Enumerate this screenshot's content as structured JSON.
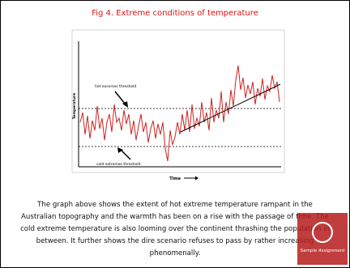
{
  "figure": {
    "title": "Fig 4. Extreme conditions of temperature",
    "y_label": "Temperature",
    "x_label": "Time",
    "hot_label": "hot excerses threshold",
    "cold_label": "cold extremes threshold"
  },
  "paragraph": {
    "lines": [
      "The graph above shows the extent of hot extreme temperature rampant in the",
      "Australian topography and the warmth has been on a rise with the passage of time. The",
      "cold extreme temperature is also looming over the continent thrashing the population in",
      "between. It further shows the dire scenario refuses to pass by rather increasing",
      "phenomenally."
    ]
  },
  "logo": {
    "text": "Sample Assignment"
  }
}
